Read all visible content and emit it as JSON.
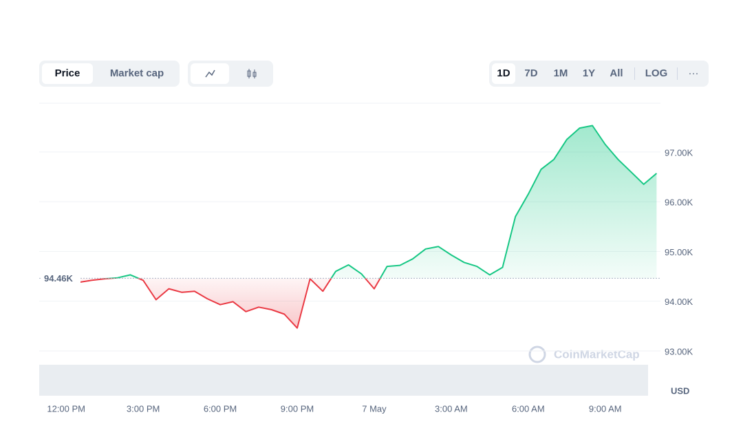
{
  "toolbar": {
    "tabs": [
      "Price",
      "Market cap"
    ],
    "ranges": [
      "1D",
      "7D",
      "1M",
      "1Y",
      "All"
    ],
    "scale": "LOG",
    "more": "···"
  },
  "chart_data": {
    "type": "line",
    "x": [
      12.5,
      13,
      13.5,
      14,
      14.5,
      15,
      15.5,
      16,
      16.5,
      17,
      17.5,
      18,
      18.5,
      19,
      19.5,
      20,
      20.5,
      21,
      21.5,
      22,
      22.5,
      23,
      23.5,
      24,
      24.5,
      25,
      25.5,
      26,
      26.5,
      27,
      27.5,
      28,
      28.5,
      29,
      29.5,
      30,
      30.5,
      31,
      31.5,
      32,
      32.5,
      33,
      33.5,
      34,
      34.5,
      35
    ],
    "values": [
      94380,
      94420,
      94450,
      94470,
      94530,
      94420,
      94030,
      94250,
      94180,
      94200,
      94050,
      93930,
      93990,
      93790,
      93880,
      93830,
      93740,
      93460,
      94450,
      94200,
      94600,
      94730,
      94550,
      94250,
      94700,
      94720,
      94850,
      95050,
      95100,
      94930,
      94780,
      94700,
      94530,
      94680,
      95700,
      96150,
      96650,
      96850,
      97250,
      97480,
      97530,
      97150,
      96850,
      96600,
      96350,
      96570
    ],
    "color_up": "#16c784",
    "color_down": "#ea3943",
    "baseline": {
      "value": 94460,
      "label": "94.46K"
    },
    "xlim": [
      10.95,
      35.15
    ],
    "xticks": [
      {
        "value": 12,
        "label": "12:00 PM"
      },
      {
        "value": 15,
        "label": "3:00 PM"
      },
      {
        "value": 18,
        "label": "6:00 PM"
      },
      {
        "value": 21,
        "label": "9:00 PM"
      },
      {
        "value": 24,
        "label": "7 May"
      },
      {
        "value": 27,
        "label": "3:00 AM"
      },
      {
        "value": 30,
        "label": "6:00 AM"
      },
      {
        "value": 33,
        "label": "9:00 AM"
      }
    ],
    "ylim": [
      92100,
      97980
    ],
    "yticks": [
      {
        "value": 93000,
        "label": "93.00K"
      },
      {
        "value": 94000,
        "label": "94.00K"
      },
      {
        "value": 95000,
        "label": "95.00K"
      },
      {
        "value": 96000,
        "label": "96.00K"
      },
      {
        "value": 97000,
        "label": "97.00K"
      }
    ],
    "y_unit": "USD",
    "watermark": "CoinMarketCap",
    "grid": true
  }
}
